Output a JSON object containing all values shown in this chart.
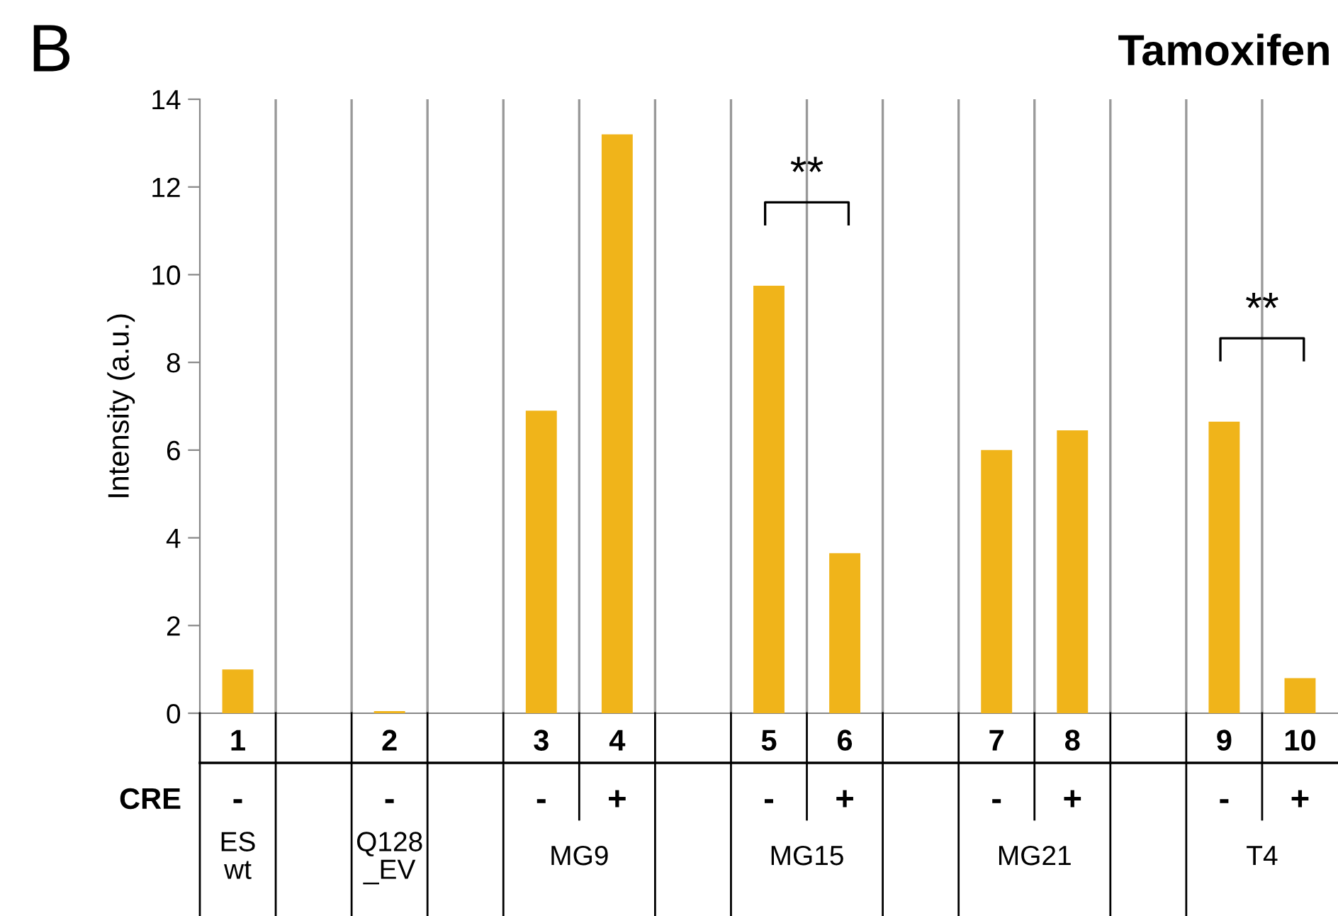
{
  "chart_data": {
    "type": "bar",
    "title": "Tamoxifen",
    "ylabel": "Intensity (a.u.)",
    "categories": [
      "1",
      null,
      "2",
      null,
      "3",
      "4",
      null,
      "5",
      "6",
      null,
      "7",
      "8",
      null,
      "9",
      "10"
    ],
    "values": [
      1.0,
      null,
      0.05,
      null,
      6.9,
      13.2,
      null,
      9.75,
      3.65,
      null,
      6.0,
      6.45,
      null,
      6.65,
      0.8
    ],
    "color": "#f0b41a",
    "ylim": [
      0,
      14
    ],
    "yticks": [
      0,
      2,
      4,
      6,
      8,
      10,
      12,
      14
    ],
    "grid": "x",
    "annotations": [
      "B",
      "**",
      "**",
      "CRE",
      "-",
      "-",
      "-",
      "+",
      "-",
      "+",
      "-",
      "+",
      "-",
      "+",
      "ES\nwt",
      "Q128\n_EV",
      "MG9",
      "MG15",
      "MG21",
      "T4"
    ]
  }
}
